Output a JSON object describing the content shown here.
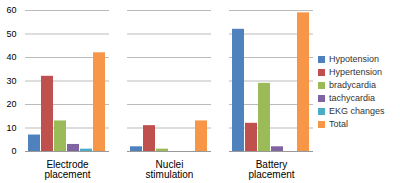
{
  "chart_data": {
    "type": "bar",
    "categories": [
      "Electrode placement",
      "Nuclei stimulation",
      "Battery placement"
    ],
    "series": [
      {
        "name": "Hypotension",
        "color": "#4f81bd",
        "values": [
          7,
          2,
          52
        ]
      },
      {
        "name": "Hypertension",
        "color": "#c0504d",
        "values": [
          32,
          11,
          12
        ]
      },
      {
        "name": "bradycardia",
        "color": "#9bbb59",
        "values": [
          13,
          1,
          29
        ]
      },
      {
        "name": "tachycardia",
        "color": "#8064a2",
        "values": [
          3,
          0,
          2
        ]
      },
      {
        "name": "EKG changes",
        "color": "#4bacc6",
        "values": [
          1,
          0,
          0
        ]
      },
      {
        "name": "Total",
        "color": "#f79646",
        "values": [
          42,
          13,
          59
        ]
      }
    ],
    "ylim": [
      0,
      60
    ],
    "yticks": [
      0,
      10,
      20,
      30,
      40,
      50,
      60
    ],
    "grid": true,
    "legend": "right"
  }
}
